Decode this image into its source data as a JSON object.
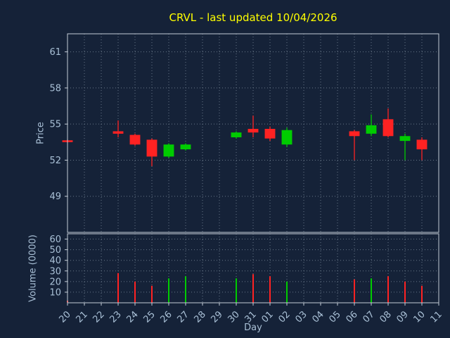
{
  "chart_data": {
    "type": "candlestick",
    "title": "CRVL - last updated 10/04/2026",
    "xlabel": "Day",
    "price_ylabel": "Price",
    "volume_ylabel": "Volume (0000)",
    "x_categories": [
      "20",
      "21",
      "22",
      "23",
      "24",
      "25",
      "26",
      "27",
      "28",
      "29",
      "30",
      "31",
      "01",
      "02",
      "03",
      "04",
      "05",
      "06",
      "07",
      "08",
      "09",
      "10",
      "11"
    ],
    "price_ylim": [
      46,
      62.5
    ],
    "price_ticks": [
      49,
      52,
      55,
      58,
      61
    ],
    "volume_ylim": [
      0,
      65
    ],
    "volume_ticks": [
      10,
      20,
      30,
      40,
      50,
      60
    ],
    "grid": "dotted",
    "legend_position": "none",
    "colors": {
      "background": "#152238",
      "title": "#ffff00",
      "up": "#00cc00",
      "down": "#ff2222",
      "grid": "#708090",
      "axis": "#c3ccd6",
      "tick_labels": "#a9c0d6"
    },
    "candles": [
      {
        "day": "20",
        "open": 53.65,
        "high": 53.7,
        "low": 53.45,
        "close": 53.5,
        "volume": 2
      },
      {
        "day": "23",
        "open": 54.4,
        "high": 55.3,
        "low": 53.9,
        "close": 54.2,
        "volume": 28
      },
      {
        "day": "24",
        "open": 54.1,
        "high": 54.2,
        "low": 53.2,
        "close": 53.3,
        "volume": 20
      },
      {
        "day": "25",
        "open": 53.7,
        "high": 53.8,
        "low": 51.5,
        "close": 52.3,
        "volume": 16
      },
      {
        "day": "26",
        "open": 52.3,
        "high": 53.4,
        "low": 52.2,
        "close": 53.3,
        "volume": 23
      },
      {
        "day": "27",
        "open": 52.9,
        "high": 53.4,
        "low": 52.8,
        "close": 53.3,
        "volume": 25
      },
      {
        "day": "30",
        "open": 53.9,
        "high": 54.4,
        "low": 53.8,
        "close": 54.3,
        "volume": 23
      },
      {
        "day": "31",
        "open": 54.6,
        "high": 55.7,
        "low": 53.9,
        "close": 54.3,
        "volume": 27
      },
      {
        "day": "01",
        "open": 54.6,
        "high": 54.8,
        "low": 53.6,
        "close": 53.8,
        "volume": 25
      },
      {
        "day": "02",
        "open": 53.3,
        "high": 54.7,
        "low": 53.1,
        "close": 54.5,
        "volume": 20
      },
      {
        "day": "06",
        "open": 54.4,
        "high": 54.5,
        "low": 52.0,
        "close": 54.0,
        "volume": 22
      },
      {
        "day": "07",
        "open": 54.2,
        "high": 55.8,
        "low": 54.0,
        "close": 54.9,
        "volume": 23
      },
      {
        "day": "08",
        "open": 55.4,
        "high": 56.3,
        "low": 53.9,
        "close": 54.0,
        "volume": 25
      },
      {
        "day": "09",
        "open": 53.6,
        "high": 54.2,
        "low": 52.0,
        "close": 54.0,
        "volume": 20,
        "vol_dir": "down"
      },
      {
        "day": "10",
        "open": 53.7,
        "high": 53.9,
        "low": 52.0,
        "close": 52.9,
        "volume": 16
      }
    ]
  }
}
